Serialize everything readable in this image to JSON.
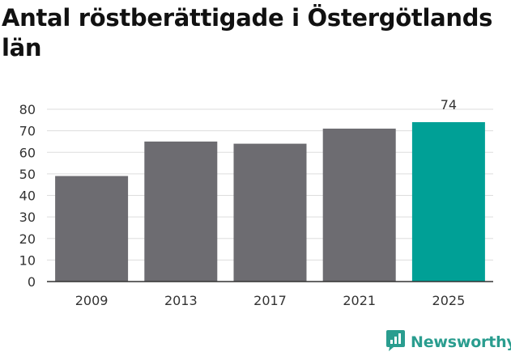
{
  "title": "Antal röstberättigade i Östergötlands län",
  "brand": {
    "name": "Newsworthy",
    "icon": "bar-chart-speech-bubble-icon",
    "color": "#2a9d8f"
  },
  "colors": {
    "bar": "#6d6c71",
    "highlight": "#00a096",
    "grid": "#dddddd",
    "axis": "#333333"
  },
  "chart_data": {
    "type": "bar",
    "title": "Antal röstberättigade i Östergötlands län",
    "xlabel": "",
    "ylabel": "",
    "categories": [
      "2009",
      "2013",
      "2017",
      "2021",
      "2025"
    ],
    "values": [
      49,
      65,
      64,
      71,
      74
    ],
    "highlight_index": 4,
    "data_labels": {
      "4": "74"
    },
    "ylim": [
      0,
      80
    ],
    "yticks": [
      0,
      10,
      20,
      30,
      40,
      50,
      60,
      70,
      80
    ],
    "grid": true,
    "legend": "none"
  }
}
